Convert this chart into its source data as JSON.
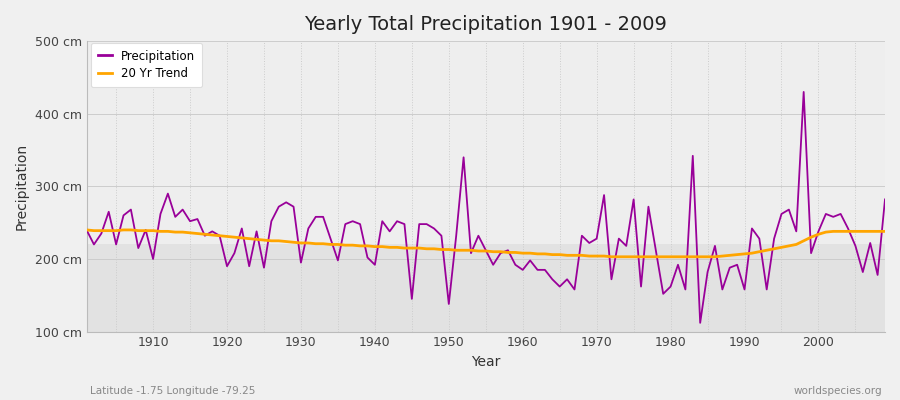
{
  "title": "Yearly Total Precipitation 1901 - 2009",
  "xlabel": "Year",
  "ylabel": "Precipitation",
  "subtitle_left": "Latitude -1.75 Longitude -79.25",
  "subtitle_right": "worldspecies.org",
  "precip_color": "#990099",
  "trend_color": "#FFA500",
  "bg_color": "#f0f0f0",
  "plot_bg_upper": "#eeeeee",
  "plot_bg_lower": "#e0e0e0",
  "grid_color": "#cccccc",
  "ylim": [
    100,
    500
  ],
  "yticks": [
    100,
    200,
    300,
    400,
    500
  ],
  "ytick_labels": [
    "100 cm",
    "200 cm",
    "300 cm",
    "400 cm",
    "500 cm"
  ],
  "xlim": [
    1901,
    2009
  ],
  "years": [
    1901,
    1902,
    1903,
    1904,
    1905,
    1906,
    1907,
    1908,
    1909,
    1910,
    1911,
    1912,
    1913,
    1914,
    1915,
    1916,
    1917,
    1918,
    1919,
    1920,
    1921,
    1922,
    1923,
    1924,
    1925,
    1926,
    1927,
    1928,
    1929,
    1930,
    1931,
    1932,
    1933,
    1934,
    1935,
    1936,
    1937,
    1938,
    1939,
    1940,
    1941,
    1942,
    1943,
    1944,
    1945,
    1946,
    1947,
    1948,
    1949,
    1950,
    1951,
    1952,
    1953,
    1954,
    1955,
    1956,
    1957,
    1958,
    1959,
    1960,
    1961,
    1962,
    1963,
    1964,
    1965,
    1966,
    1967,
    1968,
    1969,
    1970,
    1971,
    1972,
    1973,
    1974,
    1975,
    1976,
    1977,
    1978,
    1979,
    1980,
    1981,
    1982,
    1983,
    1984,
    1985,
    1986,
    1987,
    1988,
    1989,
    1990,
    1991,
    1992,
    1993,
    1994,
    1995,
    1996,
    1997,
    1998,
    1999,
    2000,
    2001,
    2002,
    2003,
    2004,
    2005,
    2006,
    2007,
    2008,
    2009
  ],
  "precipitation": [
    240,
    220,
    235,
    265,
    220,
    260,
    268,
    215,
    240,
    200,
    262,
    290,
    258,
    268,
    252,
    255,
    232,
    238,
    232,
    190,
    208,
    242,
    190,
    238,
    188,
    252,
    272,
    278,
    272,
    195,
    242,
    258,
    258,
    228,
    198,
    248,
    252,
    248,
    202,
    192,
    252,
    238,
    252,
    248,
    145,
    248,
    248,
    242,
    232,
    138,
    232,
    340,
    208,
    232,
    212,
    192,
    208,
    212,
    192,
    185,
    198,
    185,
    185,
    172,
    162,
    172,
    158,
    232,
    222,
    228,
    288,
    172,
    228,
    218,
    282,
    162,
    272,
    212,
    152,
    162,
    192,
    158,
    342,
    112,
    182,
    218,
    158,
    188,
    192,
    158,
    242,
    228,
    158,
    228,
    262,
    268,
    238,
    430,
    208,
    238,
    262,
    258,
    262,
    242,
    218,
    182,
    222,
    178,
    282
  ],
  "trend": [
    240,
    239,
    239,
    239,
    239,
    240,
    240,
    239,
    239,
    239,
    238,
    238,
    237,
    237,
    236,
    235,
    234,
    233,
    232,
    231,
    230,
    229,
    228,
    227,
    226,
    225,
    225,
    224,
    223,
    222,
    222,
    221,
    221,
    220,
    220,
    219,
    219,
    218,
    218,
    217,
    217,
    216,
    216,
    215,
    215,
    215,
    214,
    214,
    213,
    213,
    212,
    212,
    212,
    211,
    211,
    210,
    210,
    209,
    209,
    208,
    208,
    207,
    207,
    206,
    206,
    205,
    205,
    205,
    204,
    204,
    204,
    203,
    203,
    203,
    203,
    203,
    203,
    203,
    203,
    203,
    203,
    203,
    203,
    203,
    203,
    203,
    204,
    205,
    206,
    207,
    208,
    210,
    212,
    214,
    216,
    218,
    220,
    225,
    230,
    234,
    237,
    238,
    238,
    238,
    238,
    238,
    238,
    238,
    238
  ]
}
